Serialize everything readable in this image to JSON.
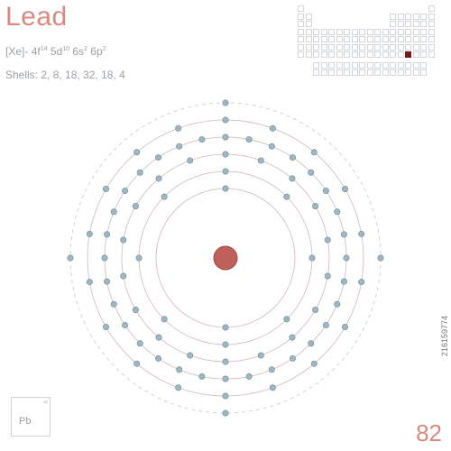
{
  "element": {
    "name": "Lead",
    "symbol": "Pb",
    "atomic_number": "82",
    "tile_number": "82",
    "config_prefix": "[Xe]-",
    "config_terms": [
      {
        "base": "4f",
        "sup": "14"
      },
      {
        "base": "5d",
        "sup": "10"
      },
      {
        "base": "6s",
        "sup": "2"
      },
      {
        "base": "6p",
        "sup": "2"
      }
    ],
    "shells_text": "Shells: 2, 8, 18, 32, 18, 4",
    "shells": [
      2,
      8,
      18,
      32,
      18,
      4
    ]
  },
  "periodic_table": {
    "highlight": {
      "row": 6,
      "col": 14
    }
  },
  "colors": {
    "title": "#d9897f",
    "nucleus": "#c0605a",
    "nucleus_stroke": "#9b4a45",
    "electron": "#9fb6c3",
    "electron_stroke": "#6f8a99",
    "orbit": "#d5b8b5",
    "orbit_outer": "#c8c8c8",
    "highlight": "#7a1515"
  },
  "watermark": "216159774"
}
